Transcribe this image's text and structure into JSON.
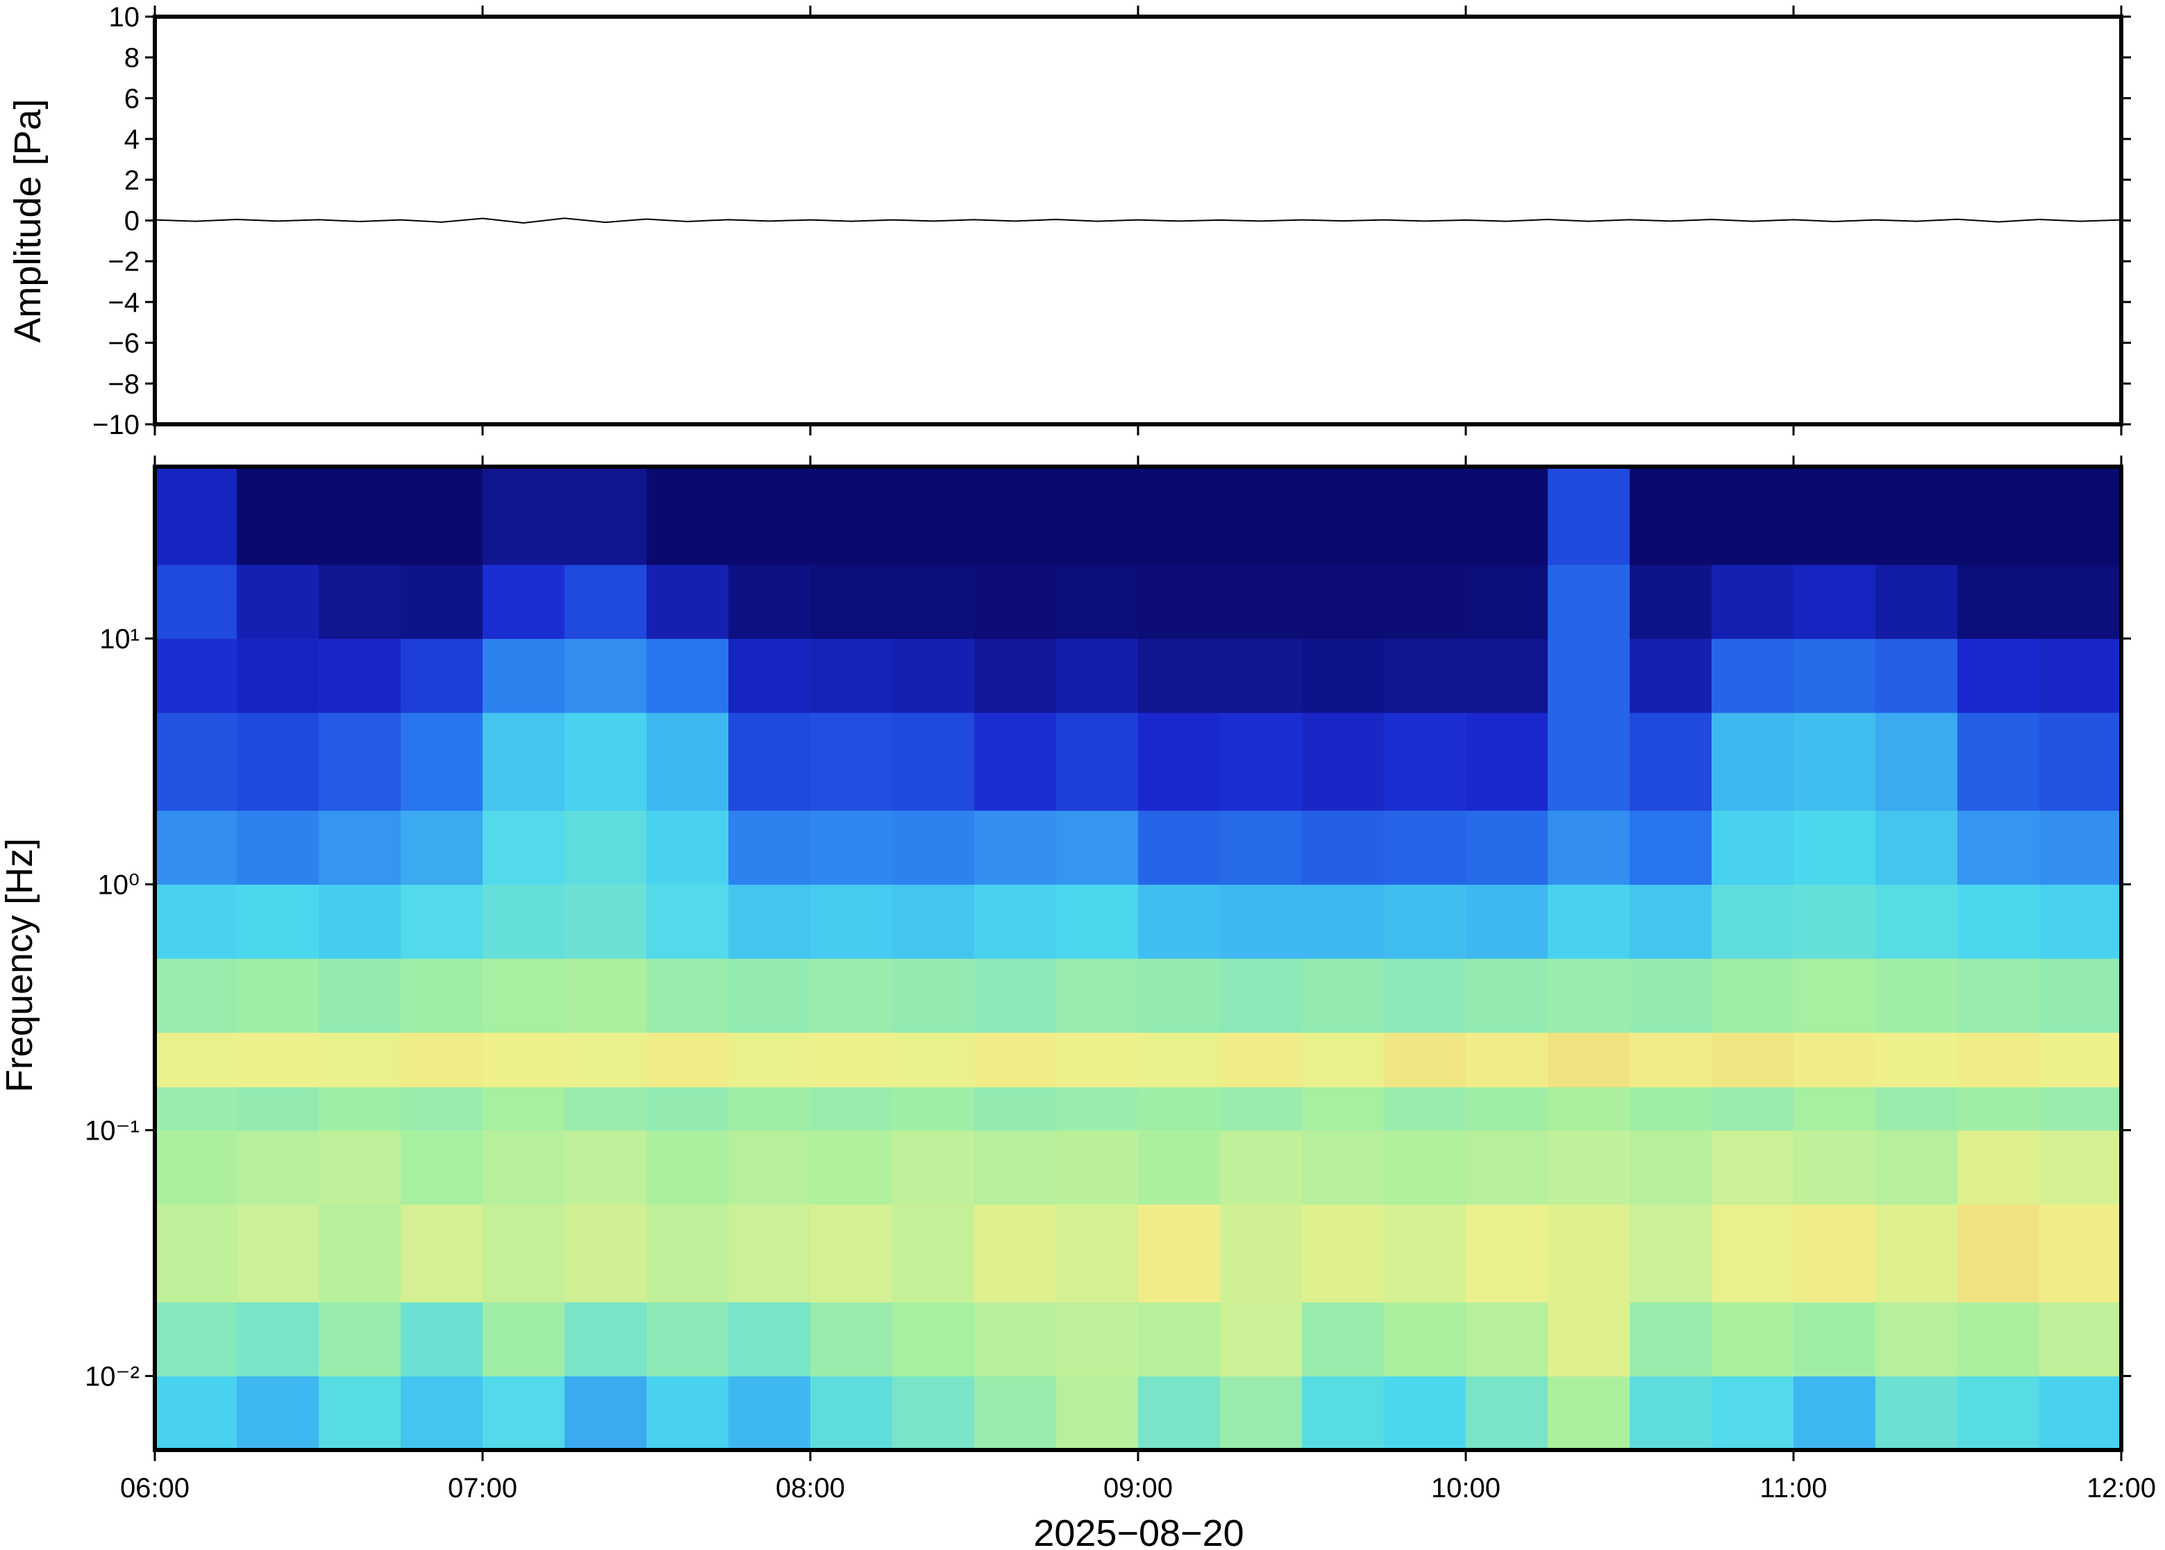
{
  "chart_data": [
    {
      "type": "line",
      "ylabel": "Amplitude [Pa]",
      "xlim": [
        6,
        12
      ],
      "xticks": [
        {
          "value": 6,
          "label": "06:00"
        },
        {
          "value": 7,
          "label": "07:00"
        },
        {
          "value": 8,
          "label": "08:00"
        },
        {
          "value": 9,
          "label": "09:00"
        },
        {
          "value": 10,
          "label": "10:00"
        },
        {
          "value": 11,
          "label": "11:00"
        },
        {
          "value": 12,
          "label": "12:00"
        }
      ],
      "ylim": [
        -10,
        10
      ],
      "yticks": [
        {
          "value": -10,
          "label": "−10"
        },
        {
          "value": -8,
          "label": "−8"
        },
        {
          "value": -6,
          "label": "−6"
        },
        {
          "value": -4,
          "label": "−4"
        },
        {
          "value": -2,
          "label": "−2"
        },
        0,
        2,
        4,
        6,
        8,
        10
      ],
      "x": [
        6,
        6.125,
        6.25,
        6.375,
        6.5,
        6.625,
        6.75,
        6.875,
        7,
        7.125,
        7.25,
        7.375,
        7.5,
        7.625,
        7.75,
        7.875,
        8,
        8.125,
        8.25,
        8.375,
        8.5,
        8.625,
        8.75,
        8.875,
        9,
        9.125,
        9.25,
        9.375,
        9.5,
        9.625,
        9.75,
        9.875,
        10,
        10.125,
        10.25,
        10.375,
        10.5,
        10.625,
        10.75,
        10.875,
        11,
        11.125,
        11.25,
        11.375,
        11.5,
        11.625,
        11.75,
        11.875,
        12
      ],
      "series": [
        {
          "color": "#000000",
          "values": [
            0.03,
            -0.04,
            0.05,
            -0.03,
            0.04,
            -0.05,
            0.03,
            -0.08,
            0.1,
            -0.12,
            0.11,
            -0.09,
            0.07,
            -0.05,
            0.04,
            -0.03,
            0.03,
            -0.04,
            0.03,
            -0.03,
            0.04,
            -0.03,
            0.05,
            -0.04,
            0.03,
            -0.03,
            0.02,
            -0.03,
            0.03,
            -0.02,
            0.03,
            -0.03,
            0.02,
            -0.04,
            0.05,
            -0.04,
            0.04,
            -0.03,
            0.05,
            -0.04,
            0.04,
            -0.05,
            0.03,
            -0.04,
            0.06,
            -0.07,
            0.05,
            -0.04,
            0.03
          ]
        }
      ]
    },
    {
      "type": "heatmap",
      "ylabel": "Frequency [Hz]",
      "xlabel": "2025−08−20",
      "log_y": true,
      "xlim": [
        6,
        12
      ],
      "xticks": [
        {
          "value": 6,
          "label": "06:00"
        },
        {
          "value": 7,
          "label": "07:00"
        },
        {
          "value": 8,
          "label": "08:00"
        },
        {
          "value": 9,
          "label": "09:00"
        },
        {
          "value": 10,
          "label": "10:00"
        },
        {
          "value": 11,
          "label": "11:00"
        },
        {
          "value": 12,
          "label": "12:00"
        }
      ],
      "ylim": [
        0.005,
        50
      ],
      "yticks": [
        {
          "value": 0.01,
          "label": "10⁻²"
        },
        {
          "value": 0.1,
          "label": "10⁻¹"
        },
        {
          "value": 1,
          "label": "10⁰"
        },
        {
          "value": 10,
          "label": "10¹"
        }
      ],
      "x_edges": [
        6,
        6.25,
        6.5,
        6.75,
        7,
        7.25,
        7.5,
        7.75,
        8,
        8.25,
        8.5,
        8.75,
        9,
        9.25,
        9.5,
        9.75,
        10,
        10.25,
        10.5,
        10.75,
        11,
        11.25,
        11.5,
        11.75,
        12
      ],
      "y_edges": [
        0.005,
        0.01,
        0.02,
        0.05,
        0.1,
        0.15,
        0.25,
        0.5,
        1,
        2,
        5,
        10,
        20,
        50
      ],
      "zlim": [
        0,
        1
      ],
      "colormap": [
        "#0a0a6e",
        "#1a2ad0",
        "#2a78f0",
        "#4ad8f0",
        "#a8f0a0",
        "#f0f08a",
        "#f0a050",
        "#d04020"
      ],
      "z": [
        [
          0.42,
          0.38,
          0.45,
          0.4,
          0.44,
          0.36,
          0.42,
          0.38,
          0.46,
          0.5,
          0.55,
          0.6,
          0.5,
          0.55,
          0.45,
          0.43,
          0.5,
          0.58,
          0.46,
          0.44,
          0.38,
          0.48,
          0.45,
          0.42
        ],
        [
          0.52,
          0.5,
          0.55,
          0.48,
          0.56,
          0.5,
          0.53,
          0.5,
          0.55,
          0.57,
          0.6,
          0.62,
          0.6,
          0.64,
          0.55,
          0.58,
          0.6,
          0.68,
          0.55,
          0.58,
          0.56,
          0.6,
          0.58,
          0.62
        ],
        [
          0.62,
          0.64,
          0.6,
          0.66,
          0.63,
          0.65,
          0.62,
          0.64,
          0.66,
          0.63,
          0.68,
          0.66,
          0.72,
          0.65,
          0.68,
          0.66,
          0.7,
          0.68,
          0.64,
          0.7,
          0.72,
          0.68,
          0.74,
          0.72
        ],
        [
          0.58,
          0.6,
          0.62,
          0.57,
          0.6,
          0.62,
          0.58,
          0.6,
          0.59,
          0.62,
          0.6,
          0.61,
          0.58,
          0.62,
          0.6,
          0.59,
          0.6,
          0.62,
          0.6,
          0.64,
          0.62,
          0.6,
          0.68,
          0.66
        ],
        [
          0.55,
          0.54,
          0.56,
          0.55,
          0.57,
          0.55,
          0.54,
          0.56,
          0.55,
          0.56,
          0.54,
          0.55,
          0.56,
          0.55,
          0.57,
          0.55,
          0.56,
          0.58,
          0.56,
          0.55,
          0.57,
          0.55,
          0.56,
          0.55
        ],
        [
          0.7,
          0.71,
          0.7,
          0.72,
          0.71,
          0.7,
          0.72,
          0.7,
          0.71,
          0.7,
          0.72,
          0.71,
          0.7,
          0.72,
          0.7,
          0.73,
          0.72,
          0.74,
          0.72,
          0.73,
          0.72,
          0.71,
          0.72,
          0.71
        ],
        [
          0.55,
          0.56,
          0.54,
          0.56,
          0.57,
          0.58,
          0.55,
          0.54,
          0.55,
          0.54,
          0.53,
          0.55,
          0.54,
          0.53,
          0.54,
          0.53,
          0.54,
          0.55,
          0.54,
          0.56,
          0.57,
          0.56,
          0.55,
          0.54
        ],
        [
          0.42,
          0.43,
          0.41,
          0.44,
          0.47,
          0.48,
          0.44,
          0.4,
          0.41,
          0.4,
          0.42,
          0.43,
          0.39,
          0.38,
          0.38,
          0.39,
          0.38,
          0.42,
          0.4,
          0.46,
          0.47,
          0.45,
          0.43,
          0.42
        ],
        [
          0.32,
          0.3,
          0.33,
          0.36,
          0.44,
          0.46,
          0.42,
          0.3,
          0.31,
          0.3,
          0.32,
          0.33,
          0.25,
          0.26,
          0.24,
          0.25,
          0.26,
          0.32,
          0.28,
          0.42,
          0.43,
          0.4,
          0.33,
          0.32
        ],
        [
          0.22,
          0.2,
          0.23,
          0.28,
          0.4,
          0.42,
          0.38,
          0.2,
          0.21,
          0.2,
          0.15,
          0.18,
          0.14,
          0.15,
          0.13,
          0.15,
          0.14,
          0.25,
          0.2,
          0.38,
          0.39,
          0.36,
          0.24,
          0.22
        ],
        [
          0.15,
          0.12,
          0.13,
          0.18,
          0.3,
          0.32,
          0.28,
          0.12,
          0.11,
          0.1,
          0.06,
          0.09,
          0.05,
          0.05,
          0.04,
          0.05,
          0.05,
          0.25,
          0.1,
          0.25,
          0.26,
          0.24,
          0.14,
          0.13
        ],
        [
          0.2,
          0.1,
          0.05,
          0.04,
          0.15,
          0.2,
          0.1,
          0.03,
          0.02,
          0.02,
          0.01,
          0.02,
          0.01,
          0.01,
          0.01,
          0.01,
          0.02,
          0.25,
          0.04,
          0.1,
          0.12,
          0.08,
          0.02,
          0.02
        ],
        [
          0.12,
          0,
          0,
          0,
          0.05,
          0.05,
          0,
          0,
          0,
          0,
          0,
          0,
          0,
          0,
          0,
          0,
          0,
          0.2,
          0,
          0,
          0,
          0,
          0,
          0
        ]
      ]
    }
  ]
}
